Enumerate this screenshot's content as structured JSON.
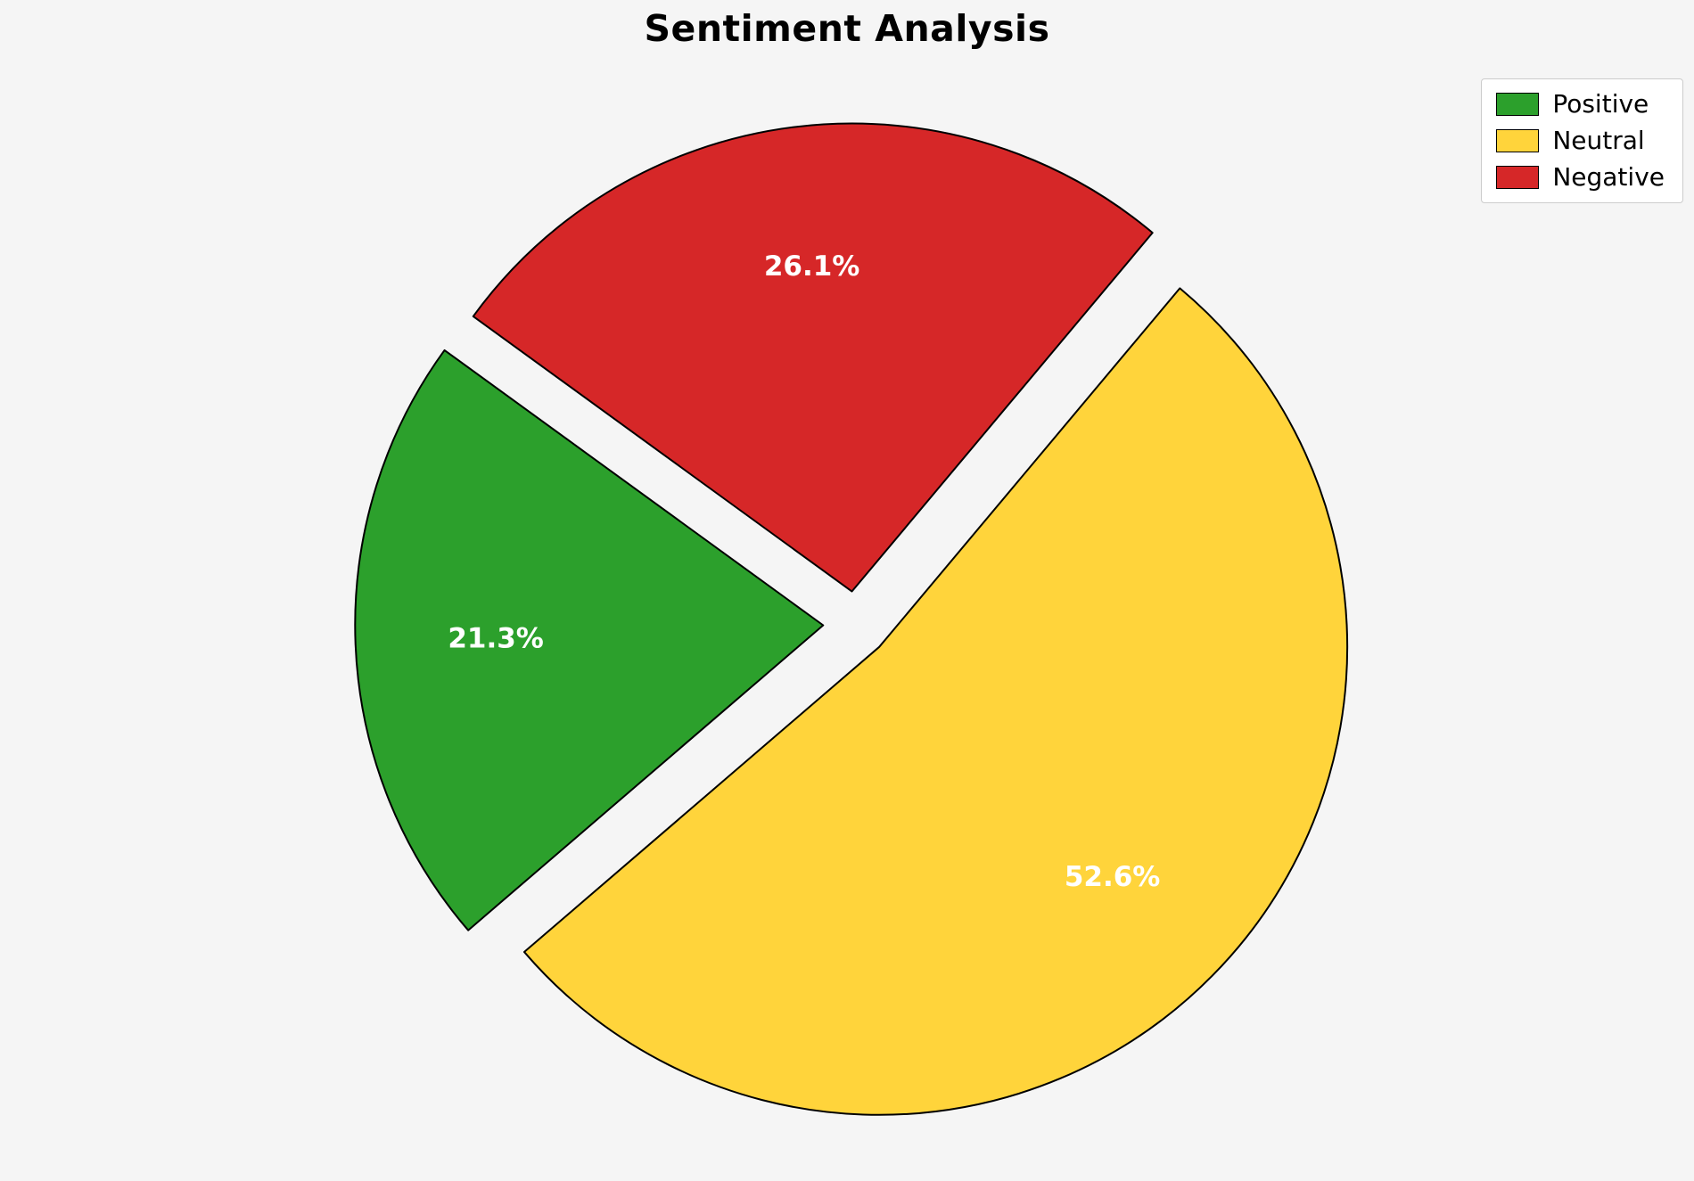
{
  "chart_data": {
    "type": "pie",
    "title": "Sentiment Analysis",
    "labels": [
      "Positive",
      "Neutral",
      "Negative"
    ],
    "values": [
      21.3,
      52.6,
      26.1
    ],
    "pct_labels": [
      "21.3%",
      "52.6%",
      "26.1%"
    ],
    "colors": [
      "#2ca02c",
      "#ffd43b",
      "#d62728"
    ],
    "edge_color": "#000000",
    "pct_label_color": "#ffffff",
    "background_color": "#f5f5f5",
    "start_angle": 144,
    "counterclock": true,
    "explode": 0.07,
    "pct_distance": 0.7,
    "legend": {
      "position": "upper right",
      "entries": [
        "Positive",
        "Neutral",
        "Negative"
      ]
    }
  }
}
